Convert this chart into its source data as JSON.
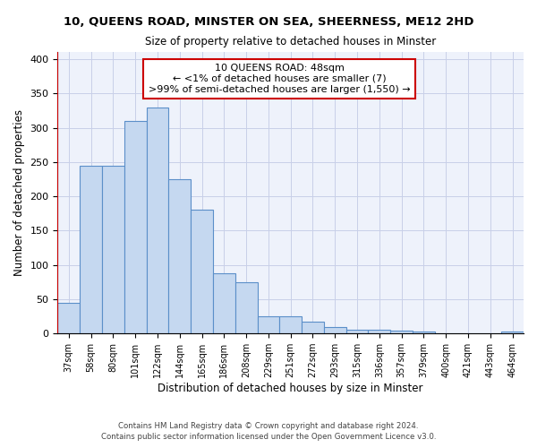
{
  "title1": "10, QUEENS ROAD, MINSTER ON SEA, SHEERNESS, ME12 2HD",
  "title2": "Size of property relative to detached houses in Minster",
  "xlabel": "Distribution of detached houses by size in Minster",
  "ylabel": "Number of detached properties",
  "categories": [
    "37sqm",
    "58sqm",
    "80sqm",
    "101sqm",
    "122sqm",
    "144sqm",
    "165sqm",
    "186sqm",
    "208sqm",
    "229sqm",
    "251sqm",
    "272sqm",
    "293sqm",
    "315sqm",
    "336sqm",
    "357sqm",
    "379sqm",
    "400sqm",
    "421sqm",
    "443sqm",
    "464sqm"
  ],
  "values": [
    45,
    245,
    245,
    310,
    330,
    225,
    180,
    88,
    75,
    25,
    25,
    17,
    9,
    5,
    5,
    4,
    3,
    0,
    0,
    0,
    3
  ],
  "bar_color": "#c5d8f0",
  "bar_edge_color": "#5b8fc9",
  "highlight_color": "#cc0000",
  "annotation_text": "10 QUEENS ROAD: 48sqm\n← <1% of detached houses are smaller (7)\n>99% of semi-detached houses are larger (1,550) →",
  "annotation_box_color": "#ffffff",
  "annotation_box_edge_color": "#cc0000",
  "ylim": [
    0,
    410
  ],
  "yticks": [
    0,
    50,
    100,
    150,
    200,
    250,
    300,
    350,
    400
  ],
  "footer1": "Contains HM Land Registry data © Crown copyright and database right 2024.",
  "footer2": "Contains public sector information licensed under the Open Government Licence v3.0.",
  "background_color": "#eef2fb",
  "grid_color": "#c8cfe8"
}
